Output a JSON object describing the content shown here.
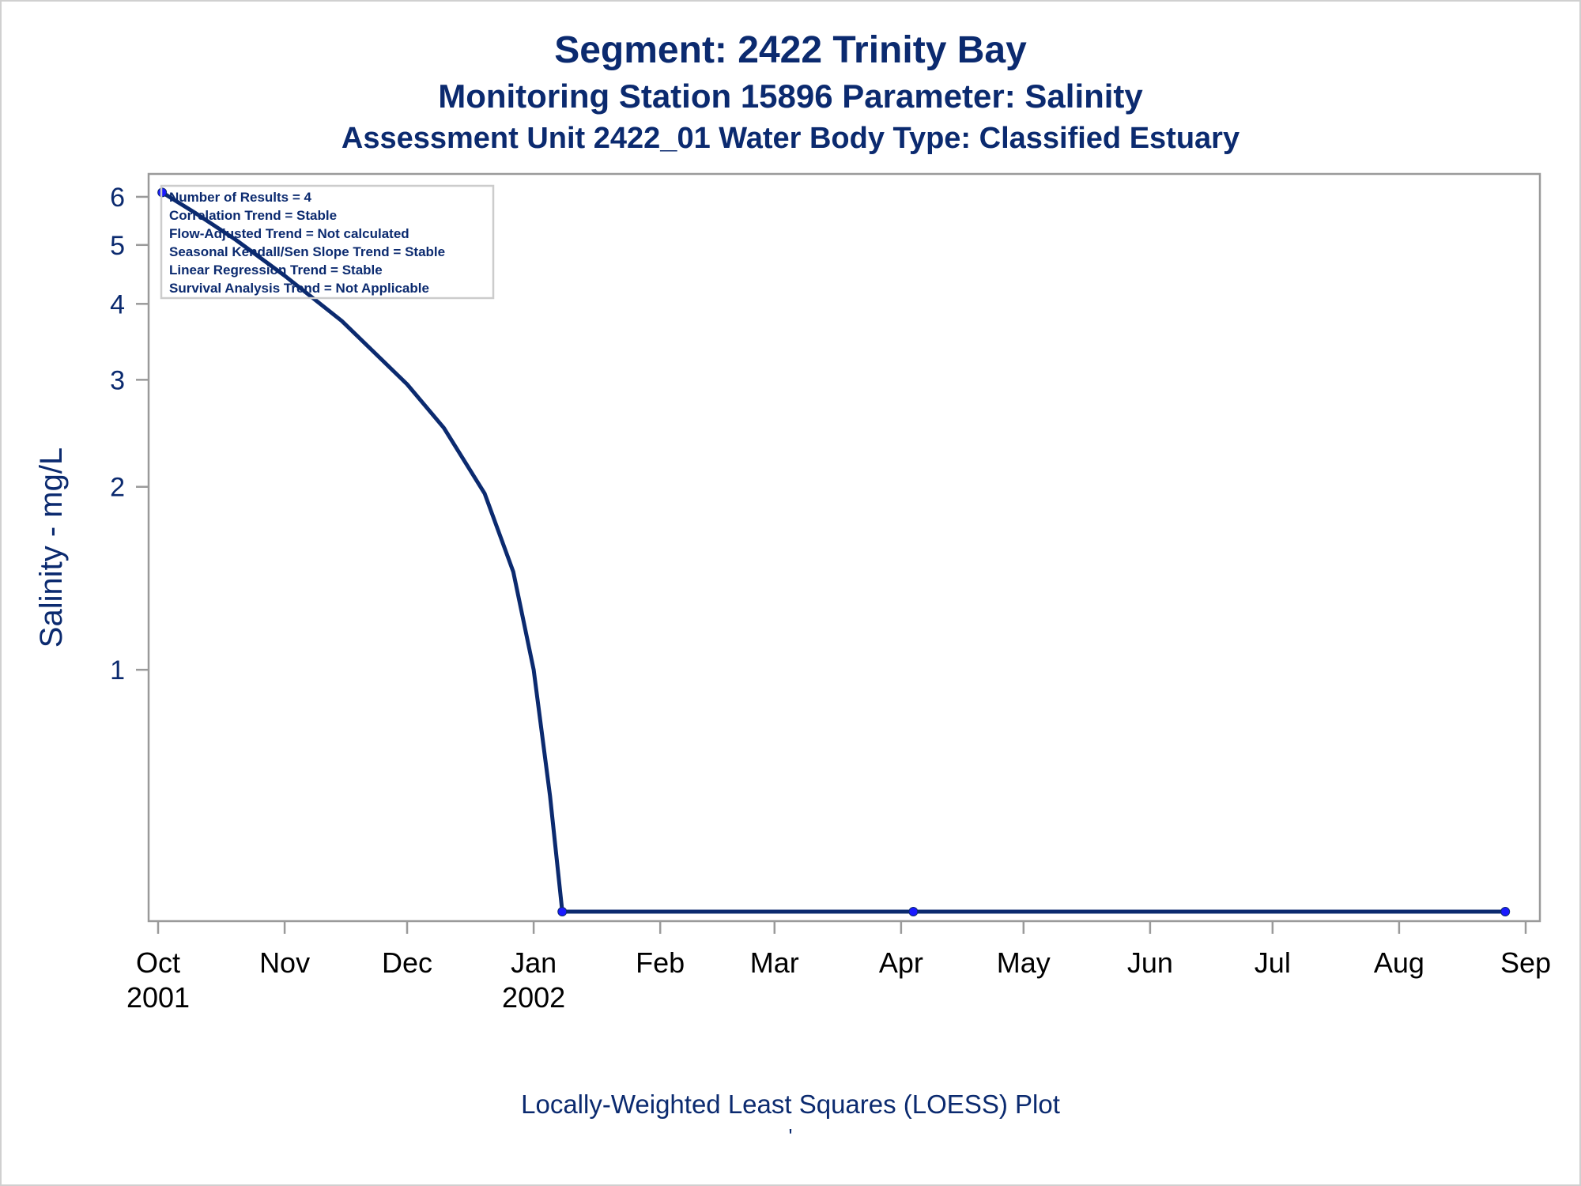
{
  "titles": {
    "line1": "Segment: 2422  Trinity Bay",
    "line2": "Monitoring Station 15896 Parameter: Salinity",
    "line3": "Assessment Unit 2422_01   Water Body Type: Classified Estuary"
  },
  "footnote": "Locally-Weighted Least Squares (LOESS) Plot",
  "footnote2": "'",
  "stats_box": {
    "lines": [
      "Number of Results = 4",
      "Correlation Trend = Stable",
      "Flow-Adjusted Trend = Not calculated",
      "Seasonal Kendall/Sen Slope Trend = Stable",
      "Linear Regression Trend = Stable",
      "Survival Analysis Trend = Not Applicable"
    ]
  },
  "colors": {
    "text": "#0b2a6f",
    "line": "#0b2a6f",
    "points": "#1a1aff",
    "axis": "#9a9a9a",
    "ticks_x": "#000000"
  },
  "chart_data": {
    "type": "line",
    "title": "Segment: 2422  Trinity Bay",
    "subtitle": "Monitoring Station 15896 Parameter: Salinity",
    "ylabel": "Salinity - mg/L",
    "xlabel": "",
    "y_scale": "log",
    "ylim": [
      0.4,
      6.2
    ],
    "y_ticks": [
      1,
      2,
      3,
      4,
      5,
      6
    ],
    "x_range": [
      "2001-10-01",
      "2002-09-01"
    ],
    "x_ticks": [
      {
        "date": "2001-10-01",
        "label": "Oct",
        "year": "2001"
      },
      {
        "date": "2001-11-01",
        "label": "Nov",
        "year": ""
      },
      {
        "date": "2001-12-01",
        "label": "Dec",
        "year": ""
      },
      {
        "date": "2002-01-01",
        "label": "Jan",
        "year": "2002"
      },
      {
        "date": "2002-02-01",
        "label": "Feb",
        "year": ""
      },
      {
        "date": "2002-03-01",
        "label": "Mar",
        "year": ""
      },
      {
        "date": "2002-04-01",
        "label": "Apr",
        "year": ""
      },
      {
        "date": "2002-05-01",
        "label": "May",
        "year": ""
      },
      {
        "date": "2002-06-01",
        "label": "Jun",
        "year": ""
      },
      {
        "date": "2002-07-01",
        "label": "Jul",
        "year": ""
      },
      {
        "date": "2002-08-01",
        "label": "Aug",
        "year": ""
      },
      {
        "date": "2002-09-01",
        "label": "Sep",
        "year": ""
      }
    ],
    "series": [
      {
        "type": "scatter",
        "points": [
          {
            "x": "2001-10-02",
            "y": 6.1
          },
          {
            "x": "2002-01-08",
            "y": 0.4
          },
          {
            "x": "2002-04-04",
            "y": 0.4
          },
          {
            "x": "2002-08-27",
            "y": 0.4
          }
        ]
      },
      {
        "type": "line",
        "points": [
          {
            "x": "2001-10-02",
            "y": 6.1
          },
          {
            "x": "2001-10-10",
            "y": 5.65
          },
          {
            "x": "2001-10-20",
            "y": 5.1
          },
          {
            "x": "2001-11-01",
            "y": 4.45
          },
          {
            "x": "2001-11-15",
            "y": 3.75
          },
          {
            "x": "2001-12-01",
            "y": 2.95
          },
          {
            "x": "2001-12-10",
            "y": 2.5
          },
          {
            "x": "2001-12-20",
            "y": 1.95
          },
          {
            "x": "2001-12-27",
            "y": 1.45
          },
          {
            "x": "2002-01-01",
            "y": 1.0
          },
          {
            "x": "2002-01-05",
            "y": 0.62
          },
          {
            "x": "2002-01-08",
            "y": 0.4
          },
          {
            "x": "2002-04-04",
            "y": 0.4
          },
          {
            "x": "2002-08-27",
            "y": 0.4
          }
        ]
      }
    ]
  }
}
